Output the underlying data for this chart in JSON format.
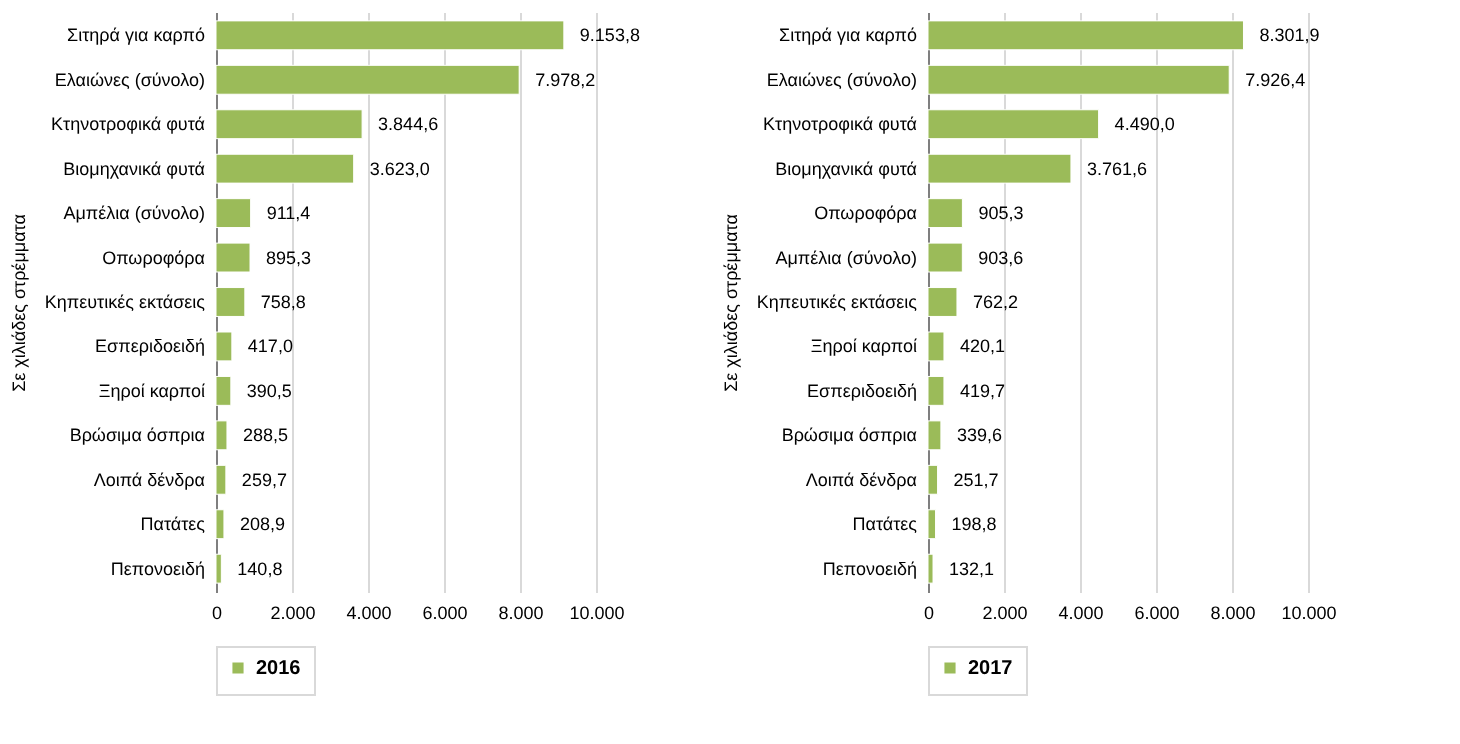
{
  "chart_data": [
    {
      "type": "bar",
      "orientation": "horizontal",
      "ylabel": "Σε χιλιάδες στρέμματα",
      "categories": [
        "Σιτηρά για καρπό",
        "Ελαιώνες (σύνολο)",
        "Κτηνοτροφικά φυτά",
        "Βιομηχανικά φυτά",
        "Αμπέλια (σύνολο)",
        "Οπωροφόρα",
        "Κηπευτικές εκτάσεις",
        "Εσπεριδοειδή",
        "Ξηροί καρποί",
        "Βρώσιμα όσπρια",
        "Λοιπά δένδρα",
        "Πατάτες",
        "Πεπονοειδή"
      ],
      "series": [
        {
          "name": "2016",
          "color": "#9bbb59",
          "values": [
            9153.8,
            7978.2,
            3844.6,
            3623.0,
            911.4,
            895.3,
            758.8,
            417.0,
            390.5,
            288.5,
            259.7,
            208.9,
            140.8
          ],
          "value_labels": [
            "9.153,8",
            "7.978,2",
            "3.844,6",
            "3.623,0",
            "911,4",
            "895,3",
            "758,8",
            "417,0",
            "390,5",
            "288,5",
            "259,7",
            "208,9",
            "140,8"
          ]
        }
      ],
      "xlim": [
        0,
        10000
      ],
      "xticks": [
        0,
        {
          "value": 2000,
          "label": "2.000"
        },
        {
          "value": 4000,
          "label": "4.000"
        },
        {
          "value": 6000,
          "label": "6.000"
        },
        {
          "value": 8000,
          "label": "8.000"
        },
        {
          "value": 10000,
          "label": "10.000"
        }
      ],
      "grid": "x",
      "legend": "bottom"
    },
    {
      "type": "bar",
      "orientation": "horizontal",
      "ylabel": "Σε χιλιάδες στρέμματα",
      "categories": [
        "Σιτηρά για καρπό",
        "Ελαιώνες (σύνολο)",
        "Κτηνοτροφικά φυτά",
        "Βιομηχανικά φυτά",
        "Οπωροφόρα",
        "Αμπέλια (σύνολο)",
        "Κηπευτικές εκτάσεις",
        "Ξηροί καρποί",
        "Εσπεριδοειδή",
        "Βρώσιμα όσπρια",
        "Λοιπά δένδρα",
        "Πατάτες",
        "Πεπονοειδή"
      ],
      "series": [
        {
          "name": "2017",
          "color": "#9bbb59",
          "values": [
            8301.9,
            7926.4,
            4490.0,
            3761.6,
            905.3,
            903.6,
            762.2,
            420.1,
            419.7,
            339.6,
            251.7,
            198.8,
            132.1
          ],
          "value_labels": [
            "8.301,9",
            "7.926,4",
            "4.490,0",
            "3.761,6",
            "905,3",
            "903,6",
            "762,2",
            "420,1",
            "419,7",
            "339,6",
            "251,7",
            "198,8",
            "132,1"
          ]
        }
      ],
      "xlim": [
        0,
        10000
      ],
      "xticks": [
        0,
        {
          "value": 2000,
          "label": "2.000"
        },
        {
          "value": 4000,
          "label": "4.000"
        },
        {
          "value": 6000,
          "label": "6.000"
        },
        {
          "value": 8000,
          "label": "8.000"
        },
        {
          "value": 10000,
          "label": "10.000"
        }
      ],
      "grid": "x",
      "legend": "bottom"
    }
  ]
}
